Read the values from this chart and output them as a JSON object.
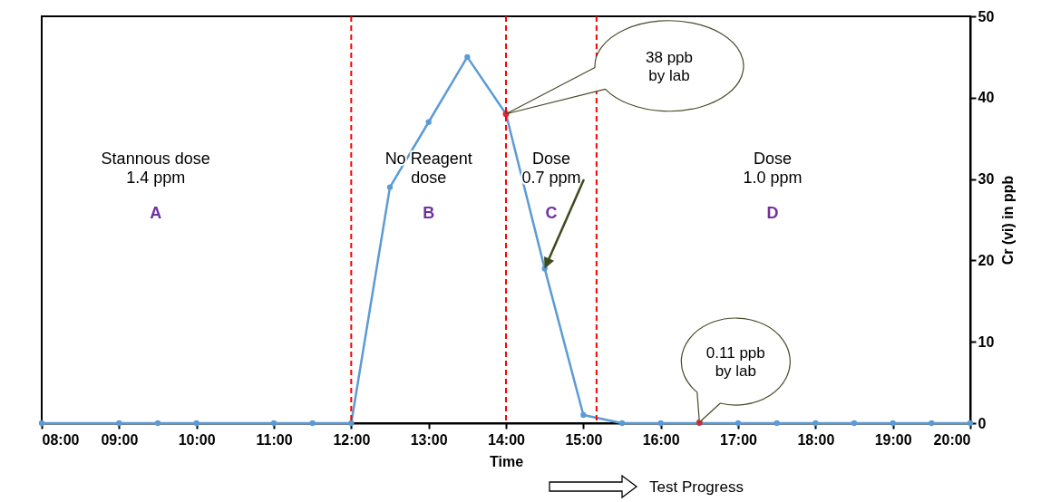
{
  "chart_data": {
    "type": "line",
    "xlabel": "Time",
    "ylabel": "Cr (vi) in ppb",
    "xlim": [
      8,
      20
    ],
    "xticks": [
      {
        "value": 8,
        "label": "08:00"
      },
      {
        "value": 9,
        "label": "09:00"
      },
      {
        "value": 10,
        "label": "10:00"
      },
      {
        "value": 11,
        "label": "11:00"
      },
      {
        "value": 12,
        "label": "12:00"
      },
      {
        "value": 13,
        "label": "13:00"
      },
      {
        "value": 14,
        "label": "14:00"
      },
      {
        "value": 15,
        "label": "15:00"
      },
      {
        "value": 16,
        "label": "16:00"
      },
      {
        "value": 17,
        "label": "17:00"
      },
      {
        "value": 18,
        "label": "18:00"
      },
      {
        "value": 19,
        "label": "19:00"
      },
      {
        "value": 20,
        "label": "20:00"
      }
    ],
    "ylim": [
      0,
      50
    ],
    "yticks": [
      0,
      10,
      20,
      30,
      40,
      50
    ],
    "series": [
      {
        "color": "#5b9bd5",
        "x": [
          8,
          9,
          9.5,
          10,
          11,
          11.5,
          12,
          12.5,
          13,
          13.5,
          14,
          14.5,
          15,
          15.5,
          16,
          16.5,
          17,
          17.5,
          18,
          18.5,
          19,
          19.5,
          20
        ],
        "values": [
          0,
          0,
          0,
          0,
          0,
          0,
          0,
          29,
          37,
          45,
          38,
          19,
          1,
          0,
          0,
          0,
          0,
          0,
          0,
          0,
          0,
          0,
          0
        ]
      },
      {
        "type": "scatter",
        "color": "#ff0000",
        "x": [
          14,
          16.5
        ],
        "values": [
          38,
          0.11
        ]
      }
    ],
    "ref_lines": [
      {
        "axis": "x",
        "value": 12,
        "color": "#ff0000",
        "line_style": "dashed"
      },
      {
        "axis": "x",
        "value": 14,
        "color": "#ff0000",
        "line_style": "dashed"
      },
      {
        "axis": "x",
        "value": 15.17,
        "color": "#ff0000",
        "line_style": "dashed"
      }
    ],
    "annotations": [
      "Stannous dose\n1.4 ppm",
      "A",
      "No Reagent\ndose",
      "B",
      {
        "text": "Dose\n0.7 ppm",
        "x": 14.5,
        "y": 19
      },
      "C",
      "Dose\n1.0 ppm",
      "D",
      {
        "text": "38 ppb\nby lab",
        "x": 14,
        "y": 38
      },
      {
        "text": "0.11 ppb\nby lab",
        "x": 16.5,
        "y": 0.11
      },
      "Test Progress"
    ],
    "grid": false,
    "marker": "circle",
    "line_style": "solid"
  }
}
